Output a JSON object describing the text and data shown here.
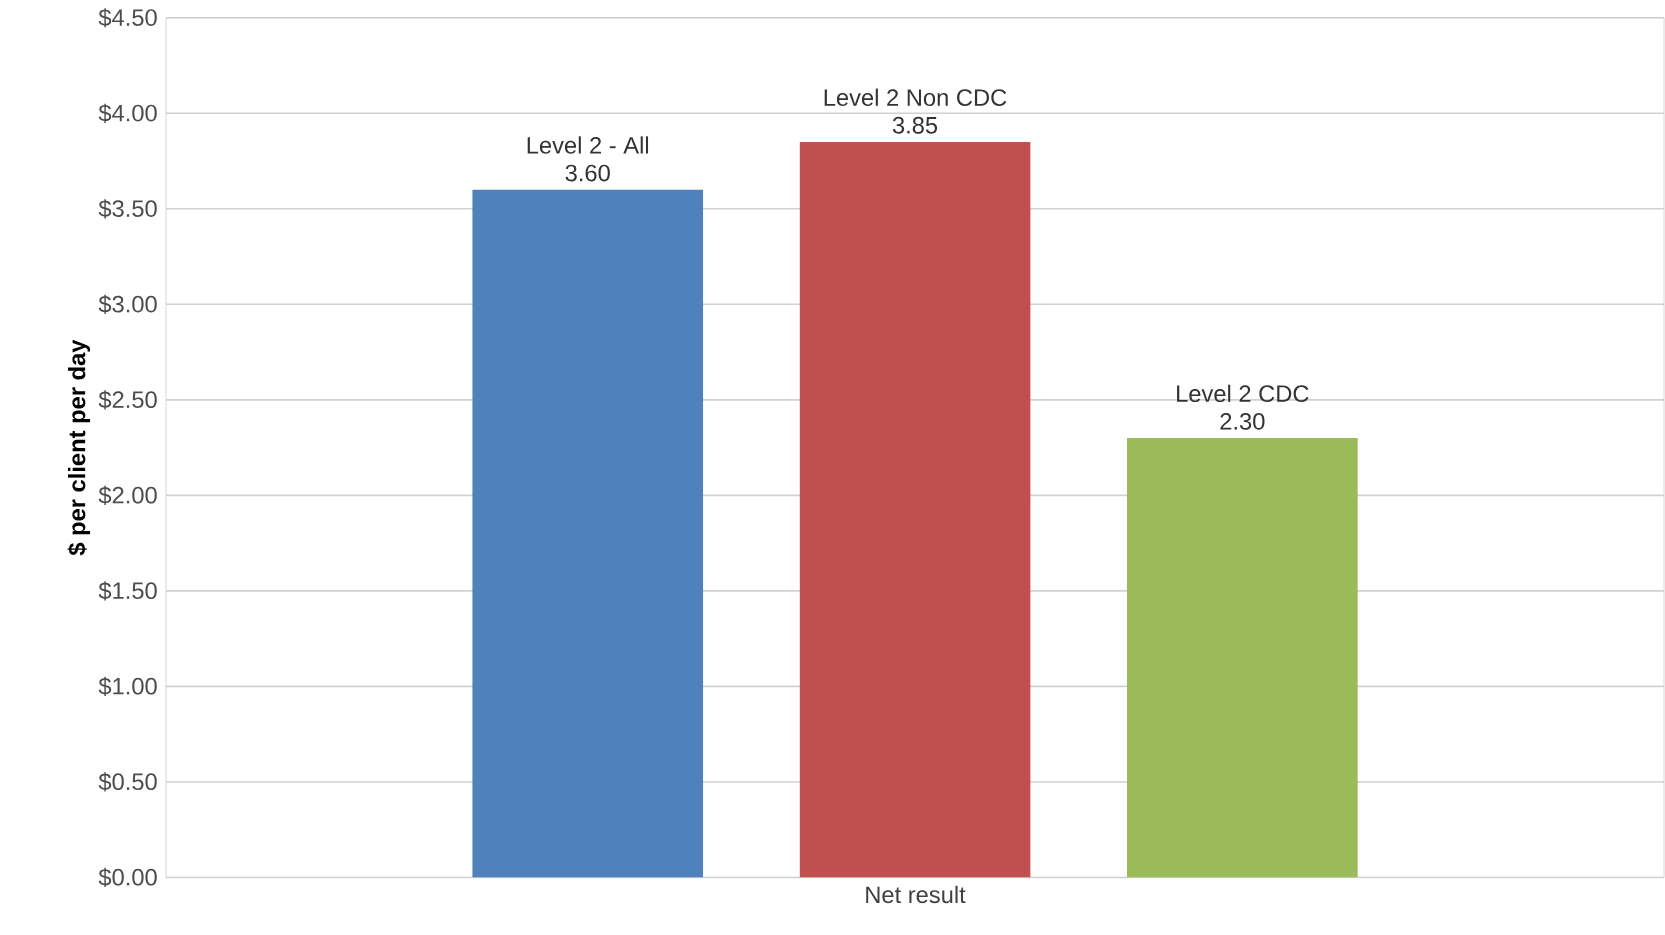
{
  "chart_data": {
    "type": "bar",
    "ylabel": "$ per client per day",
    "categories": [
      "Net result"
    ],
    "series": [
      {
        "name": "Level 2 - All",
        "color": "#4f81bd",
        "values": [
          3.6
        ],
        "value_labels": [
          "3.60"
        ]
      },
      {
        "name": "Level 2 Non CDC",
        "color": "#c0504d",
        "values": [
          3.85
        ],
        "value_labels": [
          "3.85"
        ]
      },
      {
        "name": "Level 2 CDC",
        "color": "#9bbb59",
        "values": [
          2.3
        ],
        "value_labels": [
          "2.30"
        ]
      }
    ],
    "ylim": [
      0,
      4.5
    ],
    "yticks": [
      {
        "value": 0,
        "label": "$0.00"
      },
      {
        "value": 0.5,
        "label": "$0.50"
      },
      {
        "value": 1,
        "label": "$1.00"
      },
      {
        "value": 1.5,
        "label": "$1.50"
      },
      {
        "value": 2,
        "label": "$2.00"
      },
      {
        "value": 2.5,
        "label": "$2.50"
      },
      {
        "value": 3,
        "label": "$3.00"
      },
      {
        "value": 3.5,
        "label": "$3.50"
      },
      {
        "value": 4,
        "label": "$4.00"
      },
      {
        "value": 4.5,
        "label": "$4.50"
      }
    ],
    "grid": "y",
    "legend": false
  }
}
